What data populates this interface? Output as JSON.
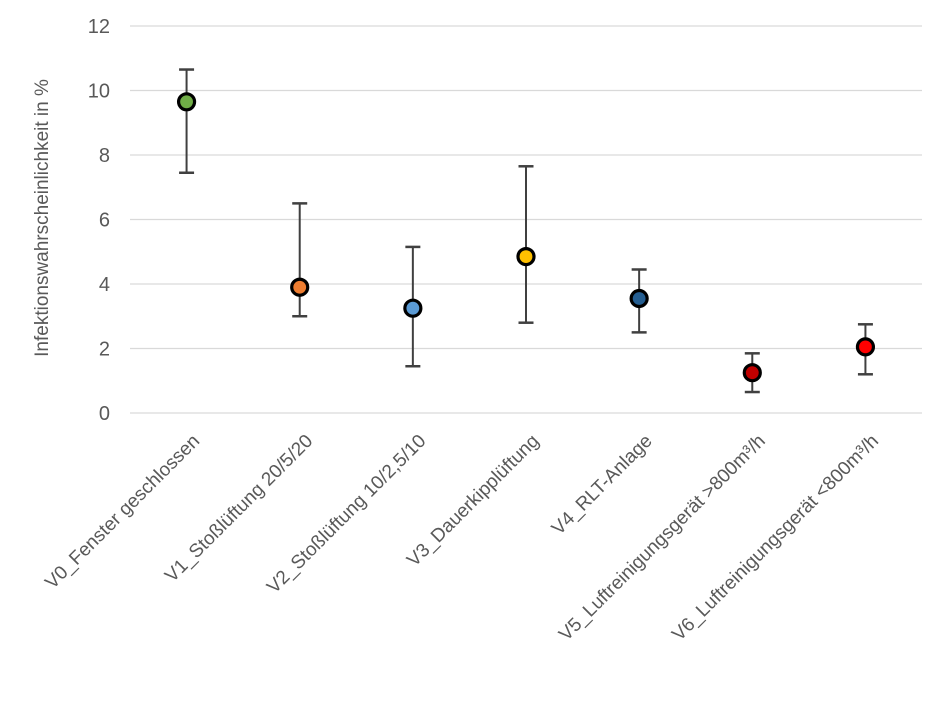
{
  "chart_data": {
    "type": "scatter",
    "title": "",
    "ylabel": "Infektionswahrscheinlichkeit in %",
    "xlabel": "",
    "ylim": [
      0,
      12
    ],
    "yticks": [
      0,
      2,
      4,
      6,
      8,
      10,
      12
    ],
    "grid": true,
    "legend": "none",
    "label_rotation_deg": -45,
    "categories": [
      "V0_Fenster geschlossen",
      "V1_Stoßlüftung 20/5/20",
      "V2_Stoßlüftung 10/2,5/10",
      "V3_Dauerkipplüftung",
      "V4_RLT-Anlage",
      "V5_Luftreinigungsgerät >800m³/h",
      "V6_Luftreinigungsgerät <800m³/h"
    ],
    "points": [
      {
        "label": "V0_Fenster geschlossen",
        "value": 9.65,
        "err_low": 7.45,
        "err_high": 10.65,
        "color": "#70AD47"
      },
      {
        "label": "V1_Stoßlüftung 20/5/20",
        "value": 3.9,
        "err_low": 3.0,
        "err_high": 6.5,
        "color": "#ED7D31"
      },
      {
        "label": "V2_Stoßlüftung 10/2,5/10",
        "value": 3.25,
        "err_low": 1.45,
        "err_high": 5.15,
        "color": "#5B9BD5"
      },
      {
        "label": "V3_Dauerkipplüftung",
        "value": 4.85,
        "err_low": 2.8,
        "err_high": 7.65,
        "color": "#FFC000"
      },
      {
        "label": "V4_RLT-Anlage",
        "value": 3.55,
        "err_low": 2.5,
        "err_high": 4.45,
        "color": "#255E91"
      },
      {
        "label": "V5_Luftreinigungsgerät >800m³/h",
        "value": 1.25,
        "err_low": 0.65,
        "err_high": 1.85,
        "color": "#C00000"
      },
      {
        "label": "V6_Luftreinigungsgerät <800m³/h",
        "value": 2.05,
        "err_low": 1.2,
        "err_high": 2.75,
        "color": "#FF0000"
      }
    ],
    "colors": {
      "gridline": "#D9D9D9",
      "tick_label": "#595959",
      "errorbar": "#404040",
      "marker_outline": "#000000",
      "background": "#FFFFFF"
    }
  }
}
